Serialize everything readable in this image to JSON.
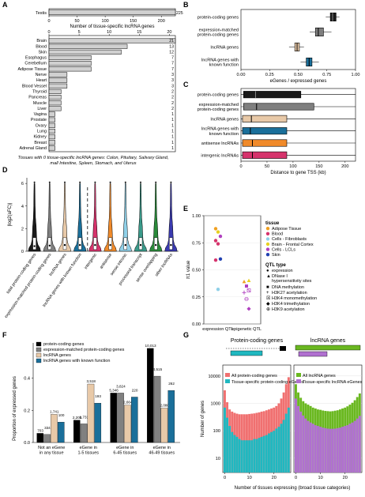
{
  "panel_letters": [
    "A",
    "B",
    "C",
    "D",
    "E",
    "F",
    "G"
  ],
  "chart_data": [
    {
      "id": "A-top",
      "type": "bar",
      "orientation": "horizontal",
      "categories": [
        "Testis"
      ],
      "values": [
        225
      ],
      "xlabel": "Number of tissue-specific lncRNA genes",
      "xlim": [
        0,
        225
      ],
      "xticks": [
        "0",
        "50",
        "100",
        "150",
        "200"
      ]
    },
    {
      "id": "A-bottom",
      "type": "bar",
      "orientation": "horizontal",
      "categories": [
        "Brain",
        "Blood",
        "Skin",
        "Esophagus",
        "Cerebellum",
        "Adipose Tissue",
        "Nerve",
        "Heart",
        "Blood Vessel",
        "Thyroid",
        "Pancreas",
        "Muscle",
        "Liver",
        "Vagina",
        "Prostate",
        "Ovary",
        "Lung",
        "Kidney",
        "Breast",
        "Adrenal Gland"
      ],
      "values": [
        21,
        13,
        12,
        7,
        7,
        7,
        3,
        3,
        3,
        2,
        2,
        2,
        2,
        1,
        1,
        1,
        1,
        1,
        1,
        1
      ],
      "xlim": [
        0,
        21
      ],
      "xticks": [
        "0",
        "5",
        "10",
        "15",
        "20"
      ],
      "footnote": "Tissues with 0 tissue-specific lncRNA genes: Colon, Pituitary, Salivary Gland, Small Intestine, Spleen, Stomach, and Uterus"
    },
    {
      "id": "B",
      "type": "box",
      "orientation": "horizontal",
      "categories": [
        "protein-coding genes",
        "expression-matched protein-coding genes",
        "lncRNA genes",
        "lncRNA genes with known function"
      ],
      "colors": [
        "#1a1a1a",
        "#7f7f7f",
        "#e8c9a8",
        "#1a6f9a"
      ],
      "boxes": [
        {
          "min": 0.74,
          "q1": 0.78,
          "median": 0.8,
          "q3": 0.83,
          "max": 0.86
        },
        {
          "min": 0.6,
          "q1": 0.65,
          "median": 0.675,
          "q3": 0.72,
          "max": 0.79
        },
        {
          "min": 0.42,
          "q1": 0.47,
          "median": 0.49,
          "q3": 0.51,
          "max": 0.55
        },
        {
          "min": 0.52,
          "q1": 0.57,
          "median": 0.595,
          "q3": 0.62,
          "max": 0.68
        }
      ],
      "xlabel": "eGenes / expressed genes",
      "xlim": [
        0,
        1
      ],
      "xticks": [
        "0.00",
        "0.25",
        "0.50",
        "0.75",
        "1.00"
      ]
    },
    {
      "id": "C",
      "type": "box",
      "orientation": "horizontal",
      "categories": [
        "protein-coding genes",
        "expression-matched protein-coding genes",
        "lncRNA genes",
        "lncRNA genes with known function",
        "antisense lncRNAs",
        "intergenic lncRNAs"
      ],
      "colors": [
        "#1a1a1a",
        "#7f7f7f",
        "#e8c9a8",
        "#1a6f9a",
        "#f08a2a",
        "#d6336c"
      ],
      "boxes": [
        {
          "min": 0,
          "q1": 5,
          "median": 28,
          "q3": 115,
          "max": 220
        },
        {
          "min": 0,
          "q1": 5,
          "median": 30,
          "q3": 140,
          "max": 220
        },
        {
          "min": 0,
          "q1": 3,
          "median": 20,
          "q3": 88,
          "max": 220
        },
        {
          "min": 0,
          "q1": 3,
          "median": 18,
          "q3": 88,
          "max": 220
        },
        {
          "min": 0,
          "q1": 3,
          "median": 22,
          "q3": 88,
          "max": 220
        },
        {
          "min": 0,
          "q1": 3,
          "median": 22,
          "q3": 88,
          "max": 220
        }
      ],
      "xlabel": "Distance to gene TSS (kb)",
      "xlim": [
        0,
        220
      ],
      "xticks": [
        "0",
        "50",
        "100",
        "150",
        "200"
      ]
    },
    {
      "id": "D",
      "type": "violin",
      "ylabel": "|log2(aFC)|",
      "ylim": [
        0,
        6.5
      ],
      "yticks": [
        "0",
        "2",
        "4",
        "6"
      ],
      "categories": [
        "total protein-coding genes",
        "expression-matched protein-coding genes",
        "lncRNA genes",
        "lncRNA genes with known function",
        "intergenic",
        "antisense",
        "sense intronic",
        "processed transcript",
        "sense overlapping",
        "other lncRNAs"
      ],
      "colors": [
        "#1a1a1a",
        "#7f7f7f",
        "#e8c9a8",
        "#1a6f9a",
        "#d6336c",
        "#f08a2a",
        "#8fd0e8",
        "#3a9a8a",
        "#2a8a3a",
        "#3a3ab0"
      ],
      "medians": [
        0.45,
        0.5,
        0.55,
        0.55,
        0.55,
        0.55,
        0.55,
        0.55,
        0.55,
        0.55
      ]
    },
    {
      "id": "E",
      "type": "scatter",
      "ylabel": "π1 value",
      "ylim": [
        0,
        1.0
      ],
      "yticks": [
        "0.00",
        "0.25",
        "0.50",
        "0.75",
        "1.00"
      ],
      "categories": [
        "expression QTL",
        "epigenetic QTL"
      ],
      "legend_tissue_title": "tissue",
      "tissues": [
        {
          "name": "Adipose Tissue",
          "color": "#f0a020"
        },
        {
          "name": "Blood",
          "color": "#d6336c"
        },
        {
          "name": "Cells - Fibroblasts",
          "color": "#8fd0e8"
        },
        {
          "name": "Brain - Frontal Cortex",
          "color": "#e8d020"
        },
        {
          "name": "Cells - LCLs",
          "color": "#b040c0"
        },
        {
          "name": "Skin",
          "color": "#2040b0"
        }
      ],
      "legend_qtl_title": "QTL type",
      "qtl_types": [
        {
          "name": "expression",
          "symbol": "●"
        },
        {
          "name": "DNase I hypersensitivity sites",
          "symbol": "▲"
        },
        {
          "name": "DNA methylation",
          "symbol": "■"
        },
        {
          "name": "H3K27 acetylation",
          "symbol": "+"
        },
        {
          "name": "H3K4 monomethylation",
          "symbol": "☒"
        },
        {
          "name": "H3K4 trimethylation",
          "symbol": "◆"
        },
        {
          "name": "H3K9 acetylation",
          "symbol": "⊕"
        }
      ],
      "points": [
        {
          "x": "expression QTL",
          "y": 0.88,
          "tissue": "Adipose Tissue",
          "qtl": "expression"
        },
        {
          "x": "expression QTL",
          "y": 0.85,
          "tissue": "Brain - Frontal Cortex",
          "qtl": "expression"
        },
        {
          "x": "expression QTL",
          "y": 0.81,
          "tissue": "Cells - LCLs",
          "qtl": "expression"
        },
        {
          "x": "expression QTL",
          "y": 0.77,
          "tissue": "Blood",
          "qtl": "expression"
        },
        {
          "x": "expression QTL",
          "y": 0.74,
          "tissue": "Blood",
          "qtl": "expression"
        },
        {
          "x": "expression QTL",
          "y": 0.6,
          "tissue": "Skin",
          "qtl": "expression"
        },
        {
          "x": "expression QTL",
          "y": 0.59,
          "tissue": "Blood",
          "qtl": "expression"
        },
        {
          "x": "expression QTL",
          "y": 0.32,
          "tissue": "Cells - Fibroblasts",
          "qtl": "expression"
        },
        {
          "x": "epigenetic QTL",
          "y": 0.4,
          "tissue": "Brain - Frontal Cortex",
          "qtl": "DNase I hypersensitivity sites"
        },
        {
          "x": "epigenetic QTL",
          "y": 0.39,
          "tissue": "Adipose Tissue",
          "qtl": "DNase I hypersensitivity sites"
        },
        {
          "x": "epigenetic QTL",
          "y": 0.35,
          "tissue": "Cells - LCLs",
          "qtl": "DNA methylation"
        },
        {
          "x": "epigenetic QTL",
          "y": 0.31,
          "tissue": "Cells - LCLs",
          "qtl": "H3K4 monomethylation"
        },
        {
          "x": "epigenetic QTL",
          "y": 0.29,
          "tissue": "Cells - LCLs",
          "qtl": "H3K27 acetylation"
        },
        {
          "x": "epigenetic QTL",
          "y": 0.23,
          "tissue": "Cells - LCLs",
          "qtl": "H3K9 acetylation"
        },
        {
          "x": "epigenetic QTL",
          "y": 0.14,
          "tissue": "Cells - LCLs",
          "qtl": "H3K4 trimethylation"
        }
      ]
    },
    {
      "id": "F",
      "type": "bar",
      "grouped": true,
      "ylabel": "Proportion of expressed genes",
      "ylim": [
        0,
        0.62
      ],
      "yticks": [
        "0.0",
        "0.2",
        "0.4"
      ],
      "categories": [
        "Not an eGene in any tissue",
        "eGene in 1-5 tissues",
        "eGene in 6-45 tissues",
        "eGene in 46-49 tissues"
      ],
      "series": [
        {
          "name": "protein-coding genes",
          "color": "#000000",
          "values": [
            0.057,
            0.139,
            0.308,
            0.586
          ],
          "labels": [
            "703",
            "2,200",
            "5,346",
            "10,013"
          ]
        },
        {
          "name": "expression-matched protein-coding genes",
          "color": "#808080",
          "values": [
            0.05,
            0.116,
            0.308,
            0.413
          ],
          "labels": [
            "334",
            "1,731",
            "3,824",
            "4,515"
          ]
        },
        {
          "name": "lncRNA genes",
          "color": "#e8c9a8",
          "values": [
            0.175,
            0.364,
            0.233,
            0.214
          ],
          "labels": [
            "1,741",
            "3,518",
            "2,664",
            "2,080"
          ]
        },
        {
          "name": "lncRNA genes with known function",
          "color": "#1a6f9a",
          "values": [
            0.127,
            0.245,
            0.283,
            0.324
          ],
          "labels": [
            "100",
            "193",
            "220",
            "262"
          ]
        }
      ]
    },
    {
      "id": "G",
      "type": "bar",
      "stacked": true,
      "panels": [
        {
          "title": "Protein-coding genes",
          "legend": [
            "All protein-coding genes",
            "Tissue-specific protein-coding eGenes"
          ],
          "colors": [
            "#f07070",
            "#20b8c0"
          ]
        },
        {
          "title": "lncRNA genes",
          "legend": [
            "All lncRNA genes",
            "Tissue-specific lncRNA eGenes"
          ],
          "colors": [
            "#6ab820",
            "#b070d0"
          ]
        }
      ],
      "xlabel": "Number of tissues expressing (broad tissue categories)",
      "ylabel": "Number of genes",
      "yticks": [
        "10",
        "100",
        "1000",
        "10000"
      ],
      "xticks": [
        "0",
        "10",
        "20"
      ],
      "log_y": true
    }
  ]
}
